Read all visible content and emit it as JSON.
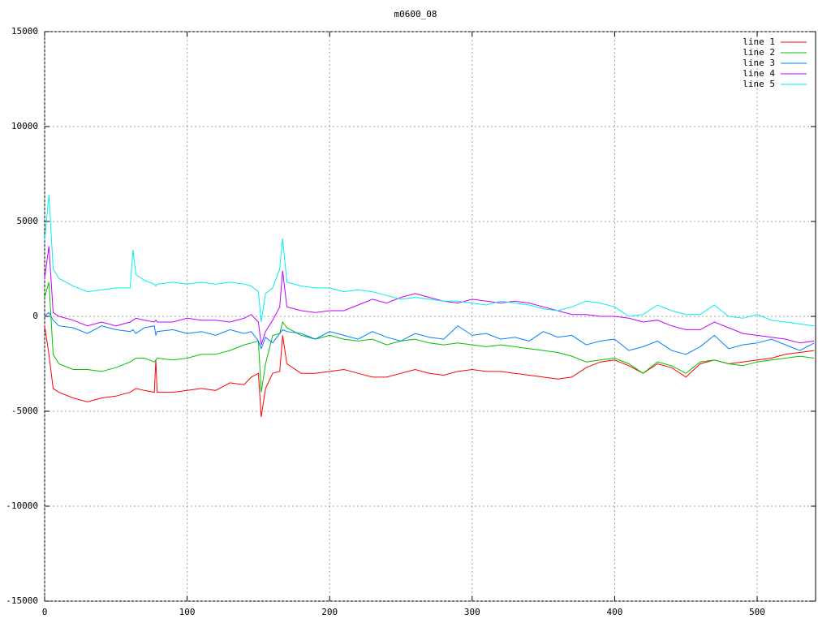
{
  "chart_data": {
    "type": "line",
    "title": "m0600_08",
    "x": [
      0,
      3,
      6,
      10,
      20,
      30,
      40,
      50,
      60,
      62,
      64,
      70,
      77,
      78,
      79,
      90,
      100,
      110,
      120,
      130,
      140,
      145,
      150,
      152,
      155,
      160,
      165,
      167,
      170,
      180,
      190,
      200,
      210,
      220,
      230,
      240,
      250,
      260,
      270,
      280,
      290,
      300,
      310,
      320,
      330,
      340,
      350,
      360,
      370,
      380,
      390,
      400,
      410,
      420,
      430,
      440,
      450,
      460,
      470,
      480,
      490,
      500,
      510,
      520,
      530,
      540
    ],
    "xlim": [
      0,
      541
    ],
    "xticks": [
      0,
      100,
      200,
      300,
      400,
      500
    ],
    "ylim": [
      -15000,
      15000
    ],
    "yticks": [
      -15000,
      -10000,
      -5000,
      0,
      5000,
      10000,
      15000
    ],
    "grid": true,
    "legend": "top-right",
    "series": [
      {
        "name": "line 1",
        "color": "#ff0000",
        "values": [
          -500,
          -2000,
          -3800,
          -4000,
          -4300,
          -4500,
          -4300,
          -4200,
          -4000,
          -3900,
          -3800,
          -3900,
          -4000,
          -2300,
          -4000,
          -4000,
          -3900,
          -3800,
          -3900,
          -3500,
          -3600,
          -3200,
          -3000,
          -5300,
          -3800,
          -3000,
          -2900,
          -1000,
          -2500,
          -3000,
          -3000,
          -2900,
          -2800,
          -3000,
          -3200,
          -3200,
          -3000,
          -2800,
          -3000,
          -3100,
          -2900,
          -2800,
          -2900,
          -2900,
          -3000,
          -3100,
          -3200,
          -3300,
          -3200,
          -2700,
          -2400,
          -2300,
          -2600,
          -3000,
          -2500,
          -2700,
          -3200,
          -2500,
          -2300,
          -2500,
          -2400,
          -2300,
          -2200,
          -2000,
          -1900,
          -1800
        ]
      },
      {
        "name": "line 2",
        "color": "#00c000",
        "values": [
          1000,
          1800,
          -2000,
          -2500,
          -2800,
          -2800,
          -2900,
          -2700,
          -2400,
          -2300,
          -2200,
          -2200,
          -2400,
          -2300,
          -2200,
          -2300,
          -2200,
          -2000,
          -2000,
          -1800,
          -1500,
          -1400,
          -1300,
          -4000,
          -2500,
          -1000,
          -900,
          -300,
          -600,
          -1000,
          -1200,
          -1000,
          -1200,
          -1300,
          -1200,
          -1500,
          -1300,
          -1200,
          -1400,
          -1500,
          -1400,
          -1500,
          -1600,
          -1500,
          -1600,
          -1700,
          -1800,
          -1900,
          -2100,
          -2400,
          -2300,
          -2200,
          -2500,
          -3000,
          -2400,
          -2600,
          -3000,
          -2400,
          -2300,
          -2500,
          -2600,
          -2400,
          -2300,
          -2200,
          -2100,
          -2200
        ]
      },
      {
        "name": "line 3",
        "color": "#0080ff",
        "values": [
          0,
          200,
          -200,
          -500,
          -600,
          -900,
          -500,
          -700,
          -800,
          -700,
          -900,
          -600,
          -500,
          -1000,
          -800,
          -700,
          -900,
          -800,
          -1000,
          -700,
          -900,
          -800,
          -1300,
          -1700,
          -1100,
          -1400,
          -900,
          -700,
          -800,
          -900,
          -1200,
          -800,
          -1000,
          -1200,
          -800,
          -1100,
          -1300,
          -900,
          -1100,
          -1200,
          -500,
          -1000,
          -900,
          -1200,
          -1100,
          -1300,
          -800,
          -1100,
          -1000,
          -1500,
          -1300,
          -1200,
          -1800,
          -1600,
          -1300,
          -1800,
          -2000,
          -1600,
          -1000,
          -1700,
          -1500,
          -1400,
          -1200,
          -1500,
          -1800,
          -1400
        ]
      },
      {
        "name": "line 4",
        "color": "#c000ff",
        "values": [
          2000,
          3700,
          200,
          0,
          -200,
          -500,
          -300,
          -500,
          -300,
          -200,
          -100,
          -200,
          -300,
          -200,
          -300,
          -300,
          -100,
          -200,
          -200,
          -300,
          -100,
          100,
          -300,
          -1500,
          -800,
          -200,
          500,
          2400,
          500,
          300,
          200,
          300,
          300,
          600,
          900,
          700,
          1000,
          1200,
          1000,
          800,
          700,
          900,
          800,
          700,
          800,
          700,
          500,
          300,
          100,
          100,
          0,
          0,
          -100,
          -300,
          -200,
          -500,
          -700,
          -700,
          -300,
          -600,
          -900,
          -1000,
          -1100,
          -1200,
          -1400,
          -1300
        ]
      },
      {
        "name": "line 5",
        "color": "#00eeee",
        "values": [
          4000,
          6400,
          2500,
          2000,
          1600,
          1300,
          1400,
          1500,
          1500,
          3500,
          2200,
          1900,
          1700,
          1600,
          1700,
          1800,
          1700,
          1800,
          1700,
          1800,
          1700,
          1600,
          1300,
          -300,
          1200,
          1500,
          2500,
          4100,
          1800,
          1600,
          1500,
          1500,
          1300,
          1400,
          1300,
          1100,
          900,
          1000,
          900,
          800,
          800,
          700,
          600,
          800,
          700,
          600,
          400,
          300,
          500,
          800,
          700,
          500,
          0,
          100,
          600,
          300,
          100,
          100,
          600,
          0,
          -100,
          100,
          -200,
          -300,
          -400,
          -500
        ]
      }
    ]
  }
}
